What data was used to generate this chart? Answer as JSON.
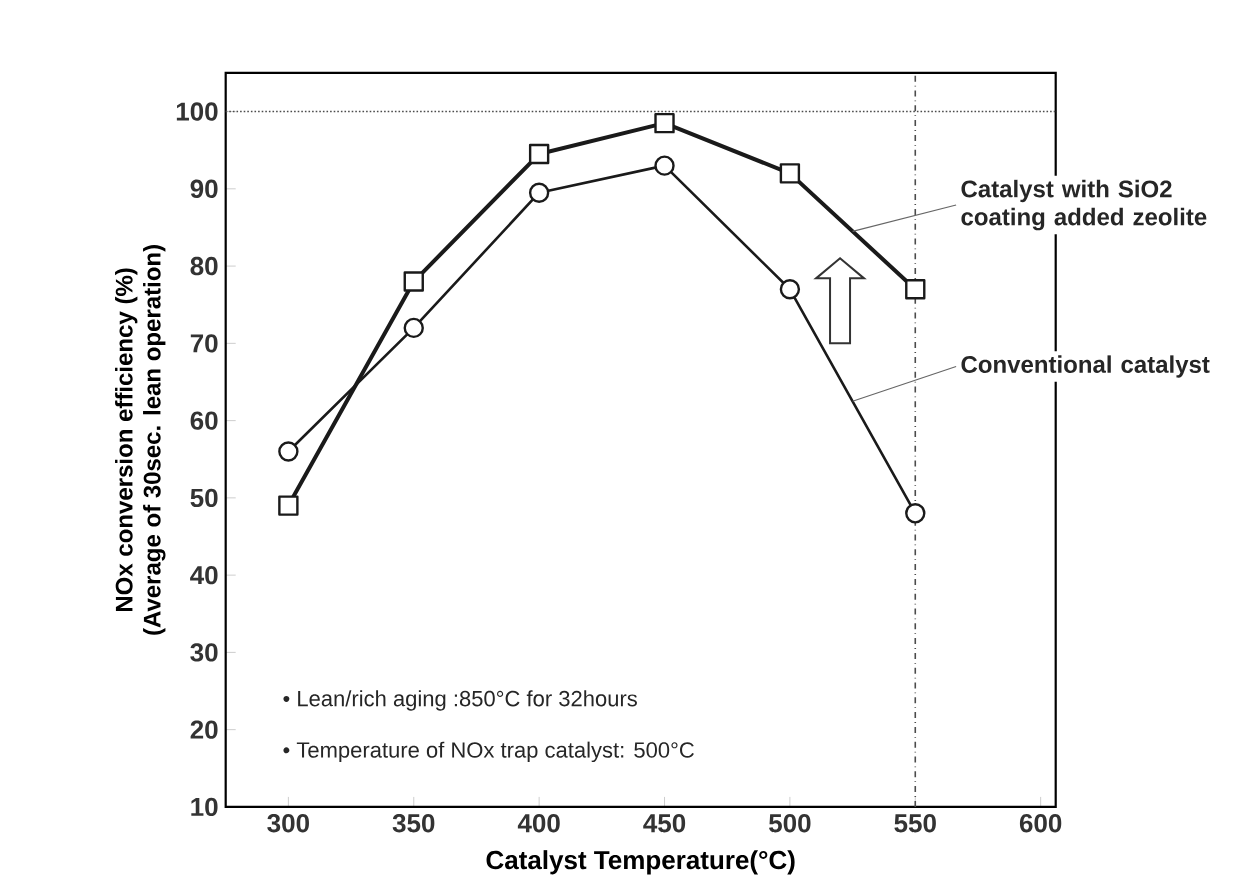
{
  "chart_data": {
    "type": "line",
    "xlabel": "Catalyst  Temperature(°C)",
    "ylabel": "NOx conversion efficiency  (%)\n(Average of 30sec. lean operation)",
    "x": [
      300,
      350,
      400,
      450,
      500,
      550
    ],
    "series": [
      {
        "name": "Catalyst with SiO2 coating added zeolite",
        "color": "#1a1a1a",
        "marker": "square",
        "values": [
          49,
          78,
          94.5,
          98.5,
          92,
          77
        ]
      },
      {
        "name": "Conventional catalyst",
        "color": "#1a1a1a",
        "marker": "circle",
        "values": [
          56,
          72,
          89.5,
          93,
          77,
          48
        ]
      }
    ],
    "xlim": [
      275,
      606
    ],
    "ylim": [
      10,
      105
    ],
    "xticks": [
      300,
      350,
      400,
      450,
      500,
      550,
      600
    ],
    "yticks": [
      10,
      20,
      30,
      40,
      50,
      60,
      70,
      80,
      90,
      100
    ],
    "ref_lines": [
      {
        "axis": "y",
        "value": 100,
        "line_style": "dotted"
      },
      {
        "axis": "x",
        "value": 550,
        "line_style": "dashed"
      }
    ],
    "annotations": [
      "• Lean/rich aging :850°C for 32hours",
      "• Temperature of NOx trap catalyst: 500°C"
    ],
    "grid": false,
    "legend": false
  }
}
